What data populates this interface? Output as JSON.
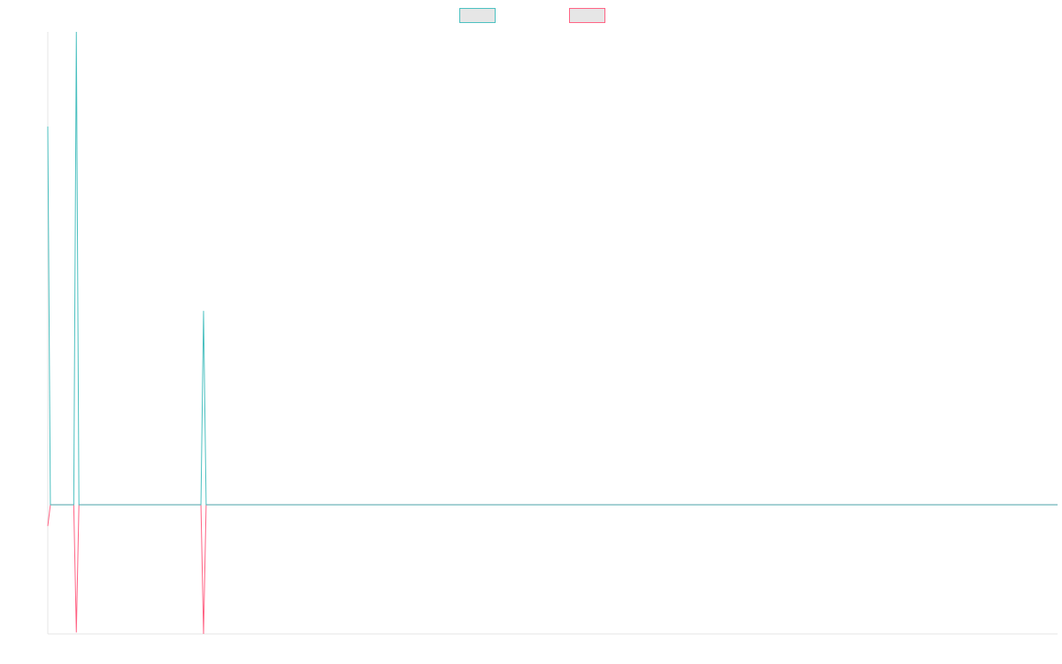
{
  "chart_data": {
    "type": "line",
    "x": [
      0,
      1,
      10,
      11,
      12,
      59,
      60,
      61,
      389
    ],
    "xlim": [
      0,
      389
    ],
    "ylim": [
      -27.3,
      100
    ],
    "series": [
      {
        "color": "#4bc0c0",
        "values": [
          80,
          0,
          0,
          100,
          0,
          0,
          41,
          0,
          0
        ]
      },
      {
        "color": "#ff6384",
        "values": [
          -4.5,
          0,
          0,
          -27,
          0,
          0,
          -27.3,
          0,
          0
        ]
      }
    ],
    "legend": "top"
  }
}
